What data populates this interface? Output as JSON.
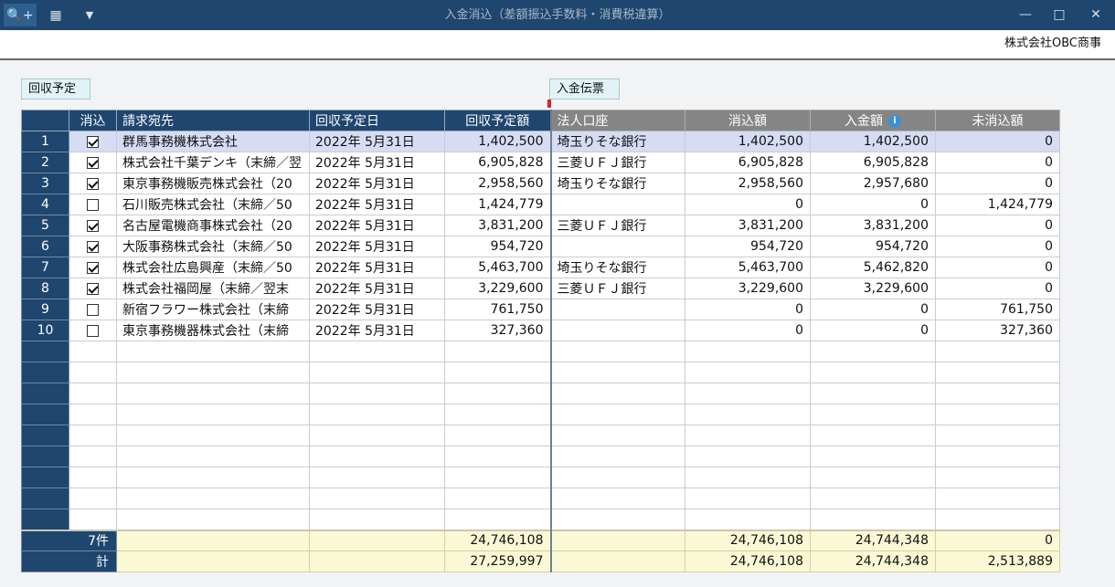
{
  "window": {
    "title": "入金消込（差額振込手数料・消費税違算）",
    "min_icon": "minimize-icon",
    "max_icon": "maximize-icon",
    "close_icon": "close-icon"
  },
  "toolbar": {
    "search_icon": "search-plus-icon",
    "excel_icon": "excel-icon",
    "dropdown_icon": "dropdown-icon"
  },
  "company": "株式会社OBC商事",
  "sections": {
    "left": "回収予定",
    "right": "入金伝票"
  },
  "columns": {
    "keshikomi": "消込",
    "seikyu": "請求宛先",
    "date": "回収予定日",
    "planned": "回収予定額",
    "account": "法人口座",
    "applied": "消込額",
    "received": "入金額",
    "remaining": "未消込額"
  },
  "rows": [
    {
      "no": "1",
      "checked": true,
      "seikyu": "群馬事務機株式会社",
      "date": "2022年  5月31日",
      "planned": "1,402,500",
      "account": "埼玉りそな銀行",
      "applied": "1,402,500",
      "received": "1,402,500",
      "remaining": "0"
    },
    {
      "no": "2",
      "checked": true,
      "seikyu": "株式会社千葉デンキ（末締／翌",
      "date": "2022年  5月31日",
      "planned": "6,905,828",
      "account": "三菱ＵＦＪ銀行",
      "applied": "6,905,828",
      "received": "6,905,828",
      "remaining": "0"
    },
    {
      "no": "3",
      "checked": true,
      "seikyu": "東京事務機販売株式会社（20",
      "date": "2022年  5月31日",
      "planned": "2,958,560",
      "account": "埼玉りそな銀行",
      "applied": "2,958,560",
      "received": "2,957,680",
      "remaining": "0"
    },
    {
      "no": "4",
      "checked": false,
      "seikyu": "石川販売株式会社（末締／50",
      "date": "2022年  5月31日",
      "planned": "1,424,779",
      "account": "",
      "applied": "0",
      "received": "0",
      "remaining": "1,424,779"
    },
    {
      "no": "5",
      "checked": true,
      "seikyu": "名古屋電機商事株式会社（20",
      "date": "2022年  5月31日",
      "planned": "3,831,200",
      "account": "三菱ＵＦＪ銀行",
      "applied": "3,831,200",
      "received": "3,831,200",
      "remaining": "0"
    },
    {
      "no": "6",
      "checked": true,
      "seikyu": "大阪事務株式会社（末締／50",
      "date": "2022年  5月31日",
      "planned": "954,720",
      "account": "",
      "applied": "954,720",
      "received": "954,720",
      "remaining": "0"
    },
    {
      "no": "7",
      "checked": true,
      "seikyu": "株式会社広島興産（末締／50",
      "date": "2022年  5月31日",
      "planned": "5,463,700",
      "account": "埼玉りそな銀行",
      "applied": "5,463,700",
      "received": "5,462,820",
      "remaining": "0"
    },
    {
      "no": "8",
      "checked": true,
      "seikyu": "株式会社福岡屋（末締／翌末",
      "date": "2022年  5月31日",
      "planned": "3,229,600",
      "account": "三菱ＵＦＪ銀行",
      "applied": "3,229,600",
      "received": "3,229,600",
      "remaining": "0"
    },
    {
      "no": "9",
      "checked": false,
      "seikyu": "新宿フラワー株式会社（末締",
      "date": "2022年  5月31日",
      "planned": "761,750",
      "account": "",
      "applied": "0",
      "received": "0",
      "remaining": "761,750"
    },
    {
      "no": "10",
      "checked": false,
      "seikyu": "東京事務機器株式会社（末締",
      "date": "2022年  5月31日",
      "planned": "327,360",
      "account": "",
      "applied": "0",
      "received": "0",
      "remaining": "327,360"
    }
  ],
  "empty_rows": 9,
  "footer": {
    "count_label": "7件",
    "count_planned": "24,746,108",
    "count_applied": "24,746,108",
    "count_received": "24,744,348",
    "count_remaining": "0",
    "total_label": "計",
    "total_planned": "27,259,997",
    "total_applied": "24,746,108",
    "total_received": "24,744,348",
    "total_remaining": "2,513,889"
  }
}
